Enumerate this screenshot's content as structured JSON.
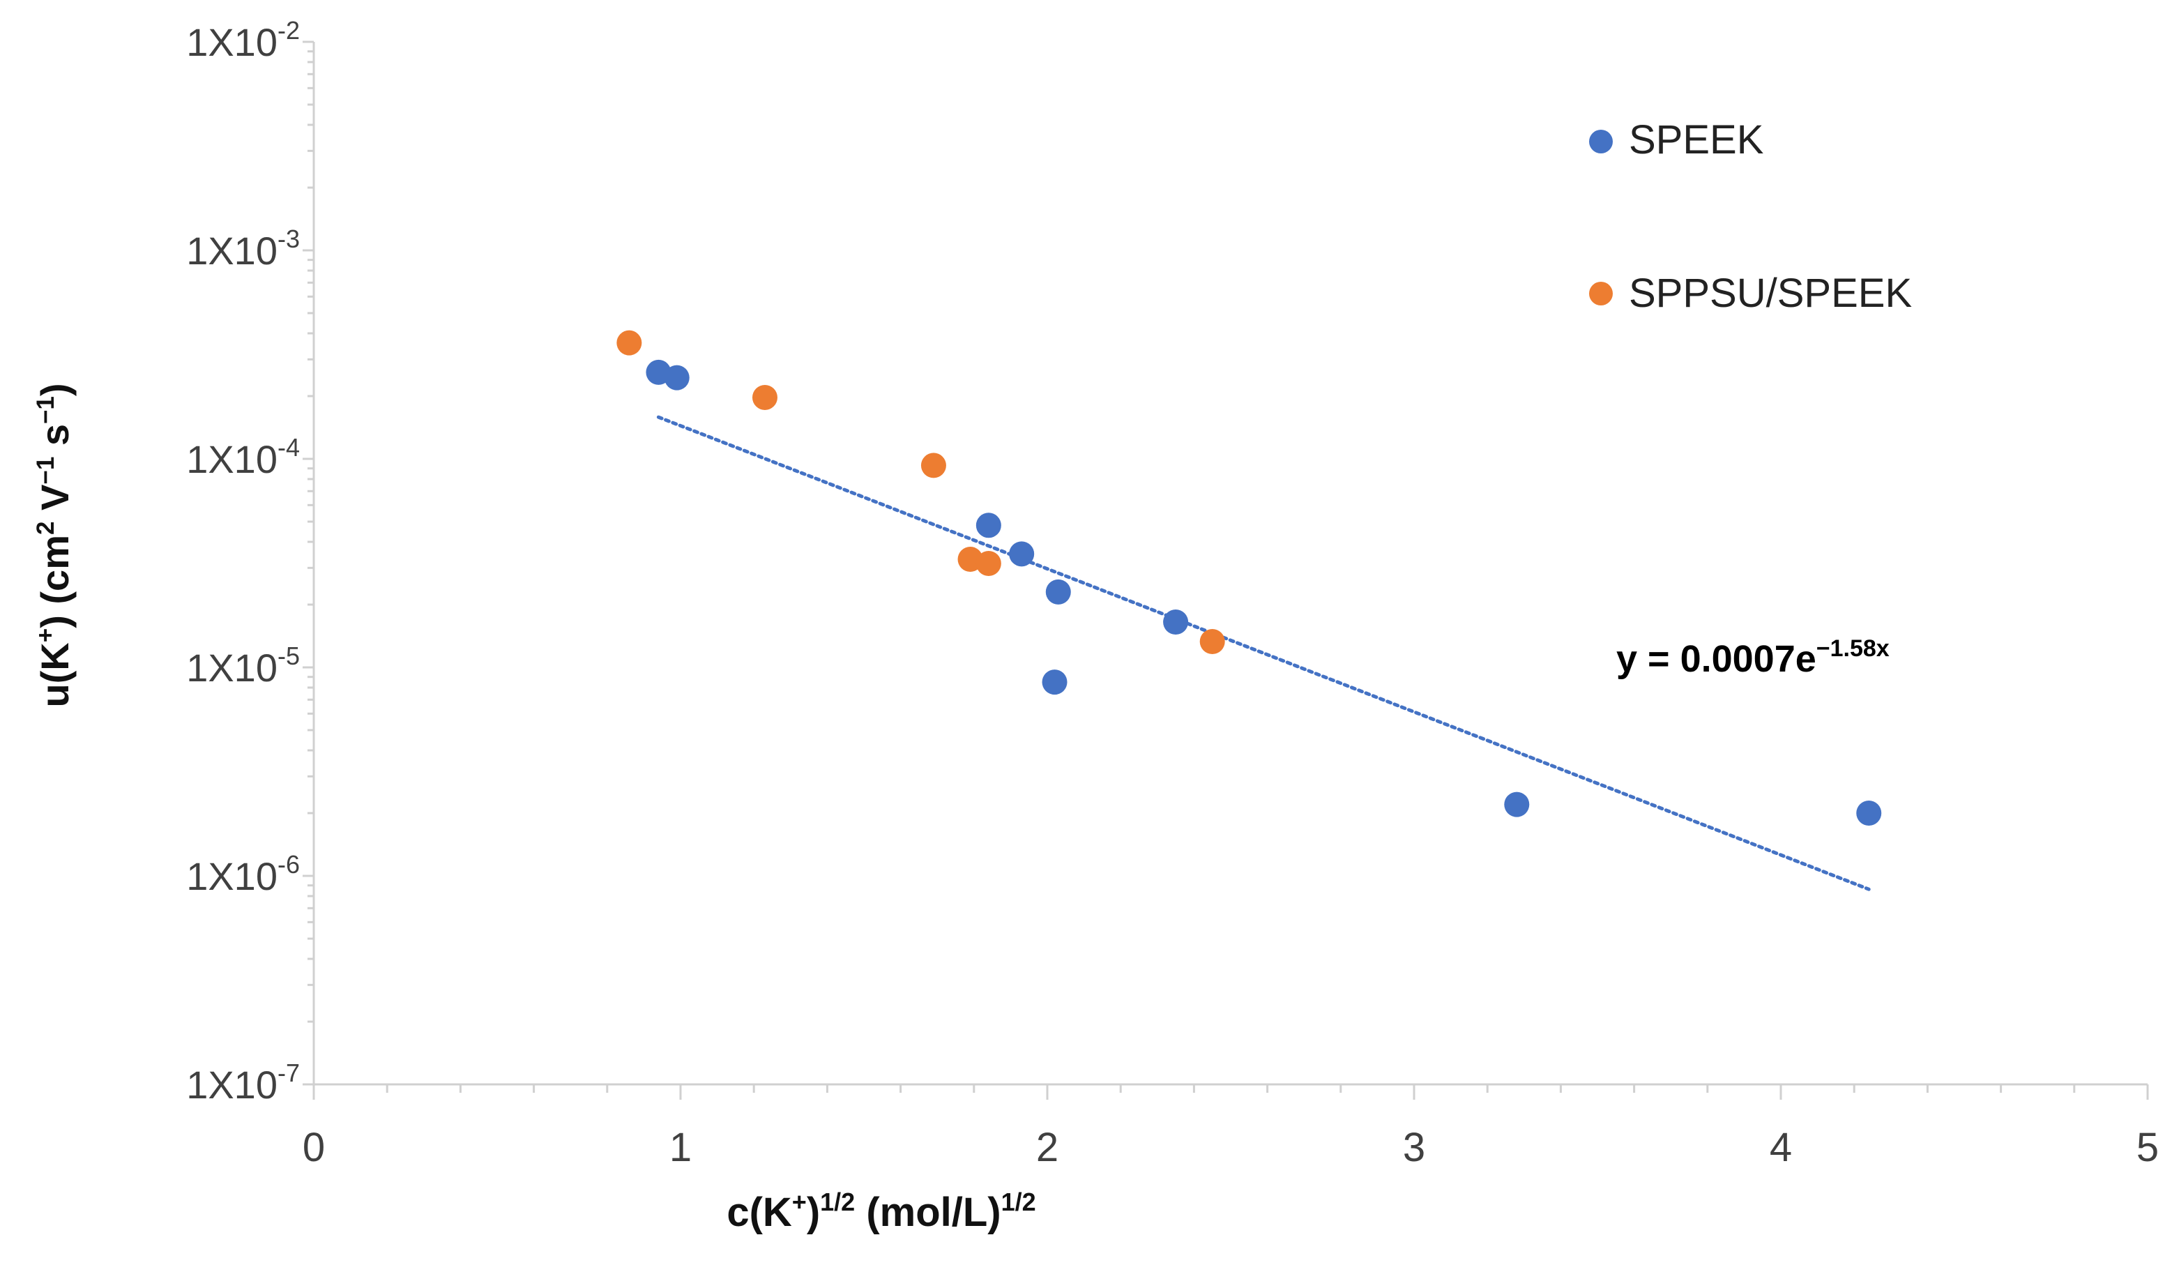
{
  "chart_data": {
    "type": "scatter",
    "title": "",
    "xlabel": {
      "base": "c(K",
      "sup1": "+",
      "mid": ")",
      "sup2": "1/2",
      "tail": " (mol/L)",
      "sup3": "1/2"
    },
    "ylabel": {
      "a": "u(K",
      "sup1": "+",
      "b": ") (cm",
      "sup2": "2",
      "c": " V",
      "sup3": "−1",
      "d": " s",
      "sup4": "−1",
      "e": ")"
    },
    "xlim": [
      0,
      5
    ],
    "ylim": [
      1e-07,
      0.01
    ],
    "yscale": "log",
    "x_ticks": [
      {
        "value": 0,
        "label": "0"
      },
      {
        "value": 1,
        "label": "1"
      },
      {
        "value": 2,
        "label": "2"
      },
      {
        "value": 3,
        "label": "3"
      },
      {
        "value": 4,
        "label": "4"
      },
      {
        "value": 5,
        "label": "5"
      }
    ],
    "y_ticks": [
      {
        "value": 0.01,
        "base": "1X10",
        "exp": "-2"
      },
      {
        "value": 0.001,
        "base": "1X10",
        "exp": "-3"
      },
      {
        "value": 0.0001,
        "base": "1X10",
        "exp": "-4"
      },
      {
        "value": 1e-05,
        "base": "1X10",
        "exp": "-5"
      },
      {
        "value": 1e-06,
        "base": "1X10",
        "exp": "-6"
      },
      {
        "value": 1e-07,
        "base": "1X10",
        "exp": "-7"
      }
    ],
    "series": [
      {
        "name": "SPEEK",
        "color": "#4472C4",
        "points": [
          {
            "x": 0.94,
            "y": 0.00026
          },
          {
            "x": 0.99,
            "y": 0.000245
          },
          {
            "x": 1.84,
            "y": 4.8e-05
          },
          {
            "x": 1.93,
            "y": 3.5e-05
          },
          {
            "x": 2.03,
            "y": 2.3e-05
          },
          {
            "x": 2.02,
            "y": 8.5e-06
          },
          {
            "x": 2.35,
            "y": 1.65e-05
          },
          {
            "x": 3.28,
            "y": 2.2e-06
          },
          {
            "x": 4.24,
            "y": 2e-06
          }
        ]
      },
      {
        "name": "SPPSU/SPEEK",
        "color": "#ED7D31",
        "points": [
          {
            "x": 0.86,
            "y": 0.00036
          },
          {
            "x": 1.23,
            "y": 0.000197
          },
          {
            "x": 1.69,
            "y": 9.3e-05
          },
          {
            "x": 1.79,
            "y": 3.3e-05
          },
          {
            "x": 1.84,
            "y": 3.15e-05
          },
          {
            "x": 2.45,
            "y": 1.33e-05
          }
        ]
      }
    ],
    "trendline": {
      "type": "exponential",
      "color": "#4472C4",
      "a": 0.0007,
      "b": -1.58,
      "x_range": [
        0.94,
        4.24
      ],
      "equation": {
        "prefix": "y = 0.0007e",
        "exponent": "−1.58x"
      }
    },
    "legend": {
      "position": "top-right"
    }
  }
}
